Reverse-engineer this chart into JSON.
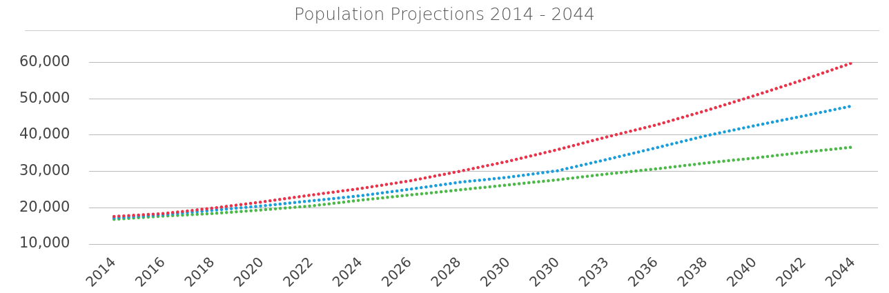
{
  "chart_data": {
    "type": "line",
    "title": "Population Projections 2014 - 2044",
    "categories": [
      "2014",
      "2016",
      "2018",
      "2020",
      "2022",
      "2024",
      "2026",
      "2028",
      "2030",
      "2030",
      "2033",
      "2036",
      "2038",
      "2040",
      "2042",
      "2044"
    ],
    "series": [
      {
        "color": "#e8334a",
        "values": [
          17600,
          18400,
          19900,
          21600,
          23500,
          25300,
          27400,
          30000,
          32800,
          36000,
          39500,
          42800,
          46700,
          50900,
          55300,
          60000
        ]
      },
      {
        "color": "#1a9edb",
        "values": [
          17200,
          18100,
          19300,
          20500,
          21900,
          23300,
          25100,
          27000,
          28400,
          30200,
          33300,
          36500,
          39800,
          42600,
          45300,
          48100
        ]
      },
      {
        "color": "#4cb848",
        "values": [
          16800,
          17700,
          18400,
          19400,
          20500,
          22100,
          23500,
          24900,
          26300,
          27700,
          29300,
          30700,
          32300,
          33700,
          35300,
          36700
        ]
      }
    ],
    "ylim": [
      10000,
      60000
    ],
    "yticks": [
      {
        "value": 10000,
        "label": "10,000"
      },
      {
        "value": 20000,
        "label": "20,000"
      },
      {
        "value": 30000,
        "label": "30,000"
      },
      {
        "value": 40000,
        "label": "40,000"
      },
      {
        "value": 50000,
        "label": "50,000"
      },
      {
        "value": 60000,
        "label": "60,000"
      }
    ],
    "grid": "y",
    "legend": false,
    "marker": "none",
    "line_style": "dotted"
  }
}
